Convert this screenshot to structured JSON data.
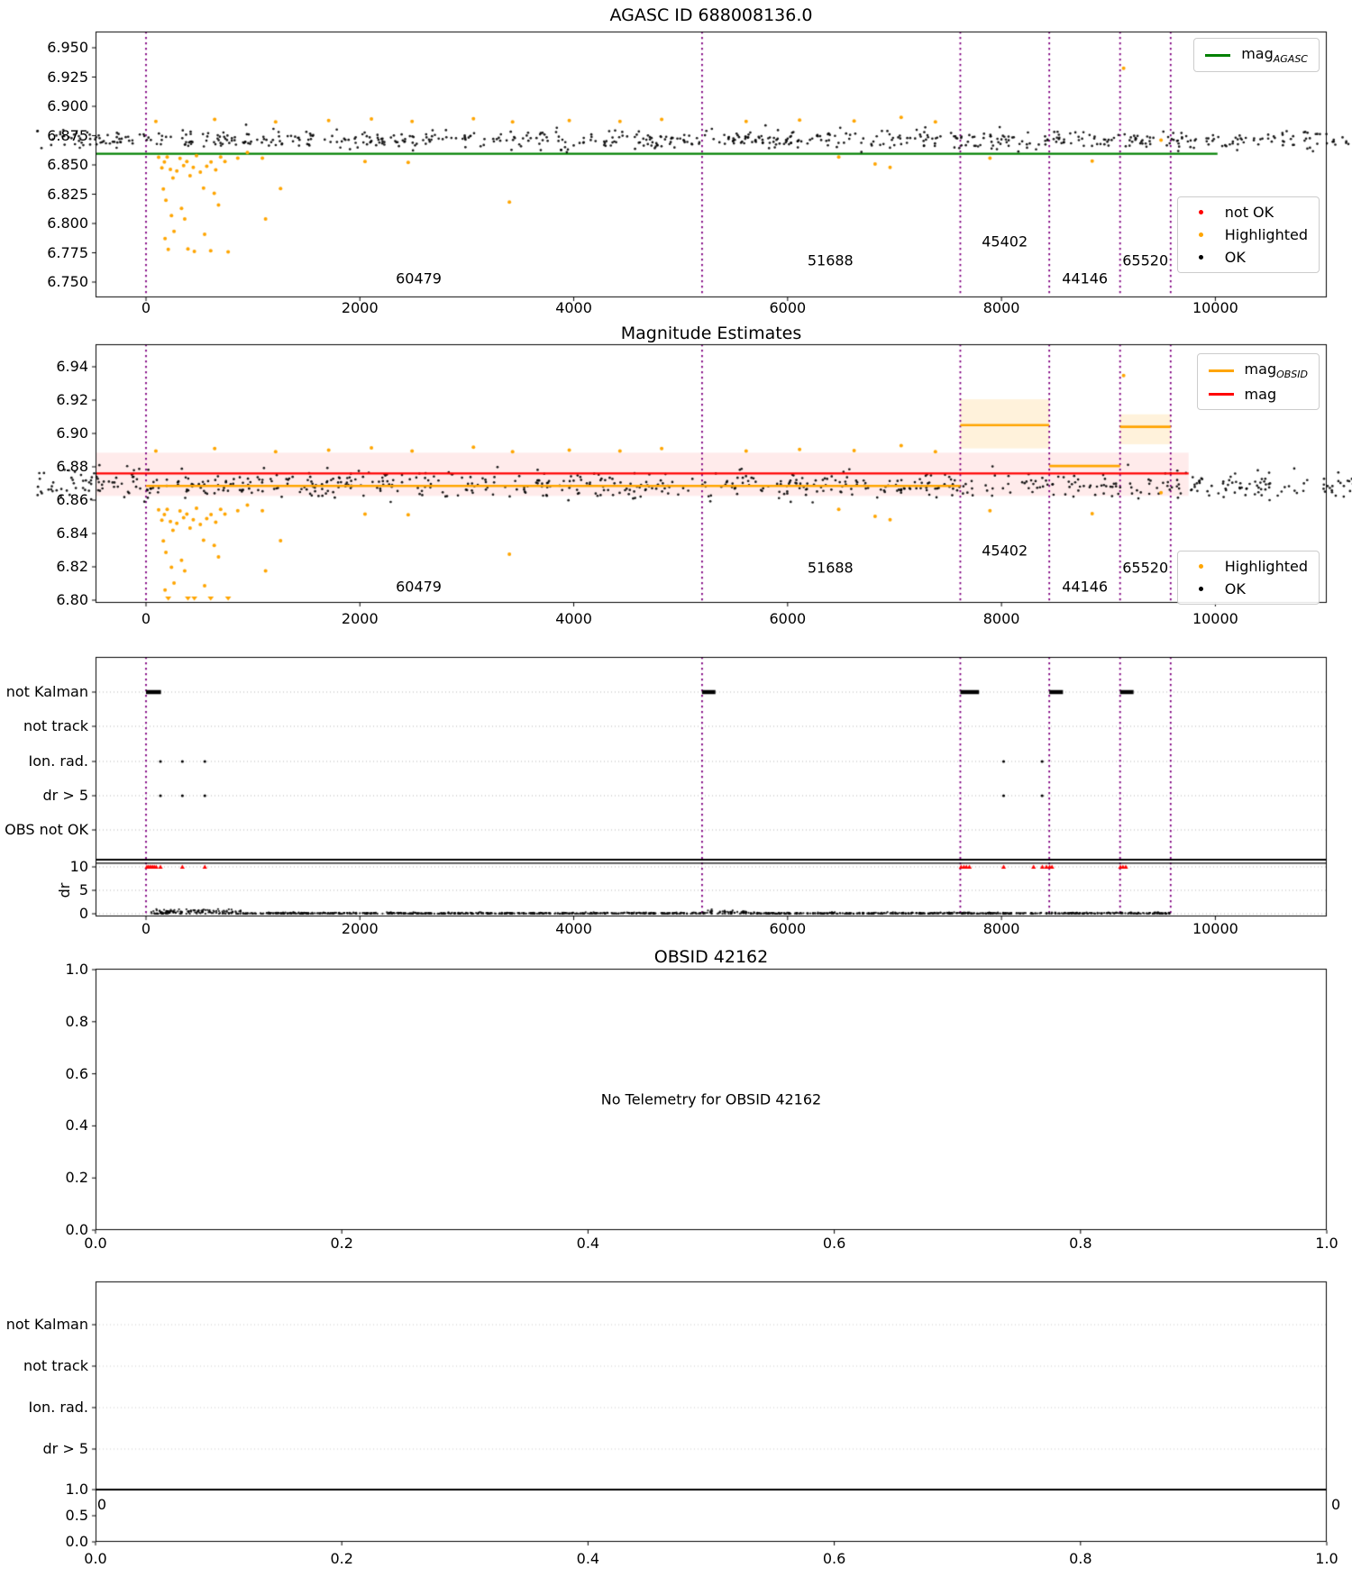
{
  "figure": {
    "background": "#ffffff"
  },
  "colors": {
    "agasc_line": "#008000",
    "obsid_line": "#ffa500",
    "mag_line": "#ff0000",
    "boundary": "#800080",
    "ok": "#000000",
    "highlighted": "#ffa500",
    "not_ok": "#ff0000",
    "mag_band": "rgba(255,0,0,0.08)",
    "obsid_band": "rgba(255,165,0,0.14)",
    "grid": "#b5b5b5",
    "grid_light": "#cccccc"
  },
  "chart_data": [
    {
      "type": "scatter",
      "title": "AGASC ID 688008136.0",
      "xticks": [
        "0",
        "2000",
        "4000",
        "6000",
        "8000",
        "10000"
      ],
      "yticks": [
        "6.950",
        "6.925",
        "6.900",
        "6.875",
        "6.850",
        "6.825",
        "6.800",
        "6.775",
        "6.750"
      ],
      "xlim": [
        -472,
        11043
      ],
      "ylim": [
        6.737,
        6.9638
      ],
      "mag_agasc": 6.8595,
      "agasc_line_span": [
        -472,
        10020
      ],
      "boundaries": [
        0,
        5200,
        7615,
        8447,
        9109,
        9582
      ],
      "obsid_labels": [
        {
          "text": "60479",
          "x": 2550,
          "y": 6.753
        },
        {
          "text": "51688",
          "x": 6400,
          "y": 6.7685
        },
        {
          "text": "45402",
          "x": 8030,
          "y": 6.785
        },
        {
          "text": "44146",
          "x": 8780,
          "y": 6.753
        },
        {
          "text": "65520",
          "x": 9345,
          "y": 6.7685
        }
      ],
      "segments": [
        {
          "obsid": "60479",
          "x0": 40,
          "x1": 5180,
          "n": 2400,
          "mean": 6.8715,
          "sd": 0.0042,
          "lo": 6.8608,
          "hi": 6.8853
        },
        {
          "obsid": "51688",
          "x0": 5240,
          "x1": 7600,
          "n": 1150,
          "mean": 6.8702,
          "sd": 0.004,
          "lo": 6.86,
          "hi": 6.8845
        },
        {
          "obsid": "45402",
          "x0": 7620,
          "x1": 8440,
          "n": 740,
          "mean": 6.9065,
          "sd": 0.0085,
          "lo": 6.876,
          "hi": 6.9375,
          "columns": {
            "start": 7658,
            "step": 83,
            "count": 10,
            "xsd": 12,
            "amp": 0.0135,
            "k": 2.0,
            "phase": 0.8
          },
          "extra_n": 80
        },
        {
          "obsid": "44146",
          "x0": 8460,
          "x1": 9100,
          "n": 640,
          "mean": 6.884,
          "sd": 0.0048,
          "lo": 6.8625,
          "hi": 6.8975,
          "trend": -0.008
        },
        {
          "obsid": "65520",
          "x0": 9120,
          "x1": 9575,
          "n": 420,
          "mean": 6.9062,
          "sd": 0.0055,
          "lo": 6.888,
          "hi": 6.9245
        }
      ],
      "highlighted_below": [
        [
          118,
          6.8565
        ],
        [
          148,
          6.8475
        ],
        [
          172,
          6.8525
        ],
        [
          198,
          6.8568
        ],
        [
          228,
          6.8462
        ],
        [
          252,
          6.8388
        ],
        [
          162,
          6.8295
        ],
        [
          186,
          6.8198
        ],
        [
          288,
          6.8448
        ],
        [
          318,
          6.8555
        ],
        [
          352,
          6.8495
        ],
        [
          382,
          6.8528
        ],
        [
          412,
          6.8408
        ],
        [
          442,
          6.8478
        ],
        [
          472,
          6.8578
        ],
        [
          508,
          6.8438
        ],
        [
          538,
          6.8302
        ],
        [
          568,
          6.8488
        ],
        [
          608,
          6.8525
        ],
        [
          652,
          6.8458
        ],
        [
          698,
          6.8568
        ],
        [
          738,
          6.8528
        ],
        [
          768,
          6.7758
        ],
        [
          178,
          6.7872
        ],
        [
          208,
          6.7778
        ],
        [
          238,
          6.8068
        ],
        [
          262,
          6.7932
        ],
        [
          332,
          6.8128
        ],
        [
          362,
          6.8038
        ],
        [
          392,
          6.7782
        ],
        [
          452,
          6.7762
        ],
        [
          548,
          6.7908
        ],
        [
          605,
          6.7768
        ],
        [
          638,
          6.8258
        ],
        [
          678,
          6.8158
        ],
        [
          858,
          6.8558
        ],
        [
          948,
          6.8605
        ],
        [
          1088,
          6.8558
        ],
        [
          1118,
          6.8038
        ],
        [
          1258,
          6.8298
        ],
        [
          2048,
          6.8528
        ],
        [
          2452,
          6.8522
        ],
        [
          3398,
          6.8182
        ],
        [
          6478,
          6.8568
        ],
        [
          6818,
          6.8508
        ],
        [
          6958,
          6.8478
        ],
        [
          7892,
          6.8558
        ],
        [
          8848,
          6.8532
        ],
        [
          9492,
          6.8712
        ]
      ],
      "highlighted_above": [
        [
          92,
          6.8872
        ],
        [
          642,
          6.8888
        ],
        [
          1212,
          6.8868
        ],
        [
          1708,
          6.8878
        ],
        [
          2108,
          6.8892
        ],
        [
          2488,
          6.8872
        ],
        [
          3062,
          6.8895
        ],
        [
          3428,
          6.8868
        ],
        [
          3958,
          6.8878
        ],
        [
          4432,
          6.8872
        ],
        [
          4822,
          6.8888
        ],
        [
          5612,
          6.8872
        ],
        [
          6112,
          6.8882
        ],
        [
          6622,
          6.8875
        ],
        [
          7062,
          6.8905
        ],
        [
          7382,
          6.8868
        ],
        [
          9142,
          6.9325
        ]
      ],
      "legend_top": [
        {
          "swatch": "line",
          "color_key": "agasc_line",
          "label": "mag",
          "sub": "AGASC"
        }
      ],
      "legend_bottom": [
        {
          "swatch": "dot",
          "color_key": "not_ok",
          "label": "not OK"
        },
        {
          "swatch": "dot",
          "color_key": "highlighted",
          "label": "Highlighted"
        },
        {
          "swatch": "dot",
          "color_key": "ok",
          "label": "OK"
        }
      ]
    },
    {
      "type": "scatter",
      "title": "Magnitude Estimates",
      "xticks": [
        "0",
        "2000",
        "4000",
        "6000",
        "8000",
        "10000"
      ],
      "yticks": [
        "6.94",
        "6.92",
        "6.90",
        "6.88",
        "6.86",
        "6.84",
        "6.82",
        "6.80"
      ],
      "xlim": [
        -472,
        11043
      ],
      "ylim": [
        6.7984,
        6.9535
      ],
      "mag": 6.876,
      "mag_band": [
        6.8625,
        6.8885
      ],
      "mag_span": [
        -472,
        9750
      ],
      "boundaries": [
        0,
        5200,
        7615,
        8447,
        9109,
        9582
      ],
      "obsid_lines": [
        {
          "x0": 0,
          "x1": 5200,
          "y": 6.8685
        },
        {
          "x0": 5200,
          "x1": 7615,
          "y": 6.8685
        },
        {
          "x0": 7615,
          "x1": 8447,
          "y": 6.905,
          "band": [
            6.891,
            6.9205
          ]
        },
        {
          "x0": 8447,
          "x1": 9109,
          "y": 6.8805
        },
        {
          "x0": 9109,
          "x1": 9582,
          "y": 6.904,
          "band": [
            6.8935,
            6.9115
          ]
        }
      ],
      "obsid_labels": [
        {
          "text": "60479",
          "x": 2550,
          "y": 6.808
        },
        {
          "text": "51688",
          "x": 6400,
          "y": 6.8195
        },
        {
          "text": "45402",
          "x": 8030,
          "y": 6.83
        },
        {
          "text": "44146",
          "x": 8780,
          "y": 6.808
        },
        {
          "text": "65520",
          "x": 9345,
          "y": 6.8195
        }
      ],
      "segments": [
        {
          "obsid": "60479",
          "x0": 40,
          "x1": 5180,
          "n": 2400,
          "mean": 6.869,
          "sd": 0.0042,
          "lo": 6.8578,
          "hi": 6.883
        },
        {
          "obsid": "51688",
          "x0": 5240,
          "x1": 7600,
          "n": 1150,
          "mean": 6.8682,
          "sd": 0.004,
          "lo": 6.8575,
          "hi": 6.8825
        },
        {
          "obsid": "45402",
          "x0": 7620,
          "x1": 8440,
          "n": 740,
          "mean": 6.9075,
          "sd": 0.0085,
          "lo": 6.877,
          "hi": 6.9385,
          "columns": {
            "start": 7658,
            "step": 83,
            "count": 10,
            "xsd": 12,
            "amp": 0.0135,
            "k": 2.0,
            "phase": 0.8
          },
          "extra_n": 80
        },
        {
          "obsid": "44146",
          "x0": 8460,
          "x1": 9100,
          "n": 640,
          "mean": 6.881,
          "sd": 0.0048,
          "lo": 6.862,
          "hi": 6.896,
          "trend": -0.009
        },
        {
          "obsid": "65520",
          "x0": 9120,
          "x1": 9575,
          "n": 420,
          "mean": 6.9028,
          "sd": 0.0055,
          "lo": 6.885,
          "hi": 6.921
        }
      ],
      "highlighted_below": [
        [
          118,
          6.8542
        ],
        [
          148,
          6.848
        ],
        [
          172,
          6.8514
        ],
        [
          198,
          6.8544
        ],
        [
          228,
          6.8471
        ],
        [
          252,
          6.8419
        ],
        [
          162,
          6.8355
        ],
        [
          186,
          6.8287
        ],
        [
          288,
          6.8461
        ],
        [
          318,
          6.8535
        ],
        [
          352,
          6.8494
        ],
        [
          382,
          6.8516
        ],
        [
          412,
          6.8433
        ],
        [
          442,
          6.8482
        ],
        [
          472,
          6.8551
        ],
        [
          508,
          6.8454
        ],
        [
          538,
          6.836
        ],
        [
          568,
          6.8489
        ],
        [
          608,
          6.8514
        ],
        [
          652,
          6.8468
        ],
        [
          698,
          6.8544
        ],
        [
          738,
          6.8516
        ],
        [
          178,
          6.8061
        ],
        [
          238,
          6.8197
        ],
        [
          262,
          6.8103
        ],
        [
          332,
          6.8239
        ],
        [
          362,
          6.8176
        ],
        [
          548,
          6.8086
        ],
        [
          638,
          6.8329
        ],
        [
          678,
          6.826
        ],
        [
          858,
          6.8537
        ],
        [
          948,
          6.857
        ],
        [
          1088,
          6.8537
        ],
        [
          1118,
          6.8176
        ],
        [
          1258,
          6.8357
        ],
        [
          2048,
          6.8516
        ],
        [
          2452,
          6.8512
        ],
        [
          3398,
          6.8276
        ],
        [
          6478,
          6.8544
        ],
        [
          6818,
          6.8503
        ],
        [
          6958,
          6.8482
        ],
        [
          7892,
          6.8537
        ],
        [
          8848,
          6.8519
        ],
        [
          9492,
          6.8644
        ]
      ],
      "highlighted_above": [
        [
          92,
          6.8894
        ],
        [
          642,
          6.891
        ],
        [
          1212,
          6.889
        ],
        [
          1708,
          6.89
        ],
        [
          2108,
          6.8914
        ],
        [
          2488,
          6.8894
        ],
        [
          3062,
          6.8917
        ],
        [
          3428,
          6.889
        ],
        [
          3958,
          6.89
        ],
        [
          4432,
          6.8894
        ],
        [
          4822,
          6.891
        ],
        [
          5612,
          6.8894
        ],
        [
          6112,
          6.8904
        ],
        [
          6622,
          6.8897
        ],
        [
          7062,
          6.8927
        ],
        [
          7382,
          6.889
        ],
        [
          9142,
          6.9347
        ]
      ],
      "clip_triangles_x": [
        208,
        392,
        452,
        605,
        768
      ],
      "legend_top": [
        {
          "swatch": "line",
          "color_key": "obsid_line",
          "label": "mag",
          "sub": "OBSID"
        },
        {
          "swatch": "line",
          "color_key": "mag_line",
          "label": "mag"
        }
      ],
      "legend_bottom": [
        {
          "swatch": "dot",
          "color_key": "highlighted",
          "label": "Highlighted"
        },
        {
          "swatch": "dot",
          "color_key": "ok",
          "label": "OK"
        }
      ]
    },
    {
      "type": "flags",
      "categories": [
        "not Kalman",
        "not track",
        "Ion. rad.",
        "dr > 5",
        "OBS not OK"
      ],
      "xticks": [
        "0",
        "2000",
        "4000",
        "6000",
        "8000",
        "10000"
      ],
      "boundaries": [
        0,
        5200,
        7615,
        8447,
        9109,
        9582
      ],
      "not_kalman_marks": [
        [
          0,
          140
        ],
        [
          5200,
          5325
        ],
        [
          7615,
          7790
        ],
        [
          8447,
          8575
        ],
        [
          9109,
          9235
        ]
      ],
      "ion_rad_x": [
        135,
        340,
        550,
        8020,
        8380
      ],
      "dr_gt5_x": [
        135,
        340,
        550,
        8020,
        8380
      ],
      "dr_label": "dr",
      "dr_ticks": [
        "10",
        "5",
        "0"
      ],
      "dr_hline": 10.8,
      "dr_red_x": [
        8,
        22,
        36,
        50,
        64,
        78,
        95,
        135,
        340,
        550,
        7622,
        7648,
        7672,
        7700,
        8020,
        8300,
        8382,
        8420,
        8450,
        8472,
        9112,
        9136,
        9162
      ],
      "dr_points": {
        "n": 1300,
        "x0": 30,
        "x1": 9575,
        "dense_until": 900,
        "dense_mean": 0.38,
        "dense_sd": 0.3,
        "bump_range": [
          5200,
          5620
        ],
        "bump_mean": 0.28,
        "bump_sd": 0.22,
        "base_mean": 0.1,
        "base_sd": 0.08
      }
    },
    {
      "type": "empty",
      "title": "OBSID 42162",
      "message": "No Telemetry for OBSID 42162",
      "xticks": [
        "0.0",
        "0.2",
        "0.4",
        "0.6",
        "0.8",
        "1.0"
      ],
      "yticks": [
        "1.0",
        "0.8",
        "0.6",
        "0.4",
        "0.2",
        "0.0"
      ]
    },
    {
      "type": "flags_empty",
      "categories": [
        "not Kalman",
        "not track",
        "Ion. rad.",
        "dr > 5"
      ],
      "inset_yticks": [
        "1.0",
        "0.5",
        "0.0"
      ],
      "stray_zeros": [
        "0",
        "0"
      ],
      "xticks": [
        "0.0",
        "0.2",
        "0.4",
        "0.6",
        "0.8",
        "1.0"
      ]
    }
  ]
}
